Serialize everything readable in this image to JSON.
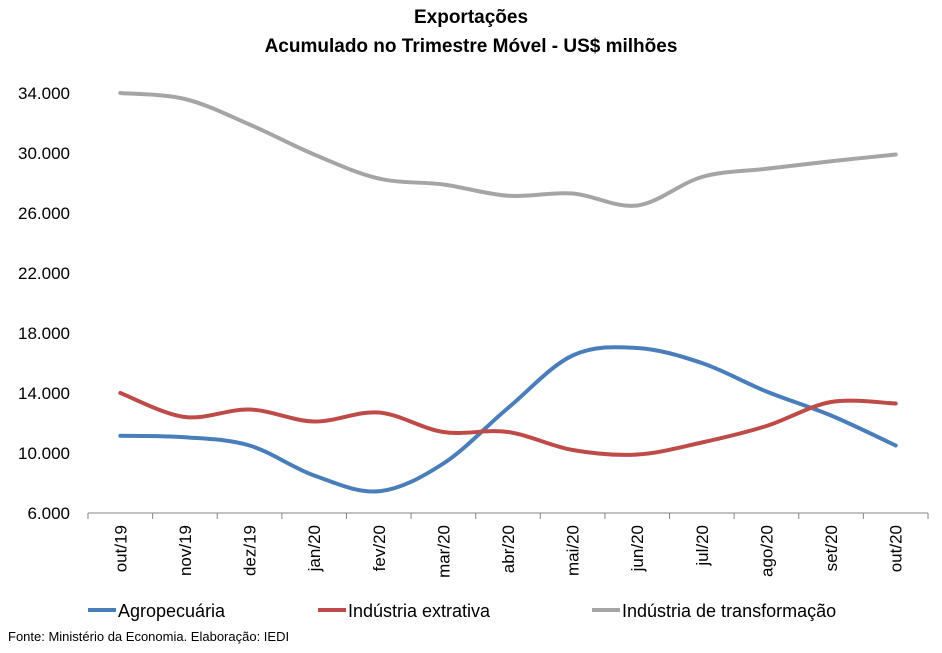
{
  "chart_data": {
    "type": "line",
    "title": "Exportações",
    "subtitle": "Acumulado no Trimestre Móvel - US$ milhões",
    "xlabel": "",
    "ylabel": "",
    "ylim": [
      6000,
      34000
    ],
    "yticks": [
      6000,
      10000,
      14000,
      18000,
      22000,
      26000,
      30000,
      34000
    ],
    "ytick_labels": [
      "6.000",
      "10.000",
      "14.000",
      "18.000",
      "22.000",
      "26.000",
      "30.000",
      "34.000"
    ],
    "categories": [
      "out/19",
      "nov/19",
      "dez/19",
      "jan/20",
      "fev/20",
      "mar/20",
      "abr/20",
      "mai/20",
      "jun/20",
      "jul/20",
      "ago/20",
      "set/20",
      "out/20"
    ],
    "grid": false,
    "legend_position": "bottom",
    "series": [
      {
        "name": "Agropecuária",
        "color": "#4a7ebb",
        "values": [
          11150,
          11050,
          10500,
          8500,
          7450,
          9300,
          13000,
          16500,
          17000,
          16000,
          14100,
          12500,
          10500
        ]
      },
      {
        "name": "Indústria extrativa",
        "color": "#be4b48",
        "values": [
          14000,
          12400,
          12900,
          12100,
          12700,
          11400,
          11400,
          10200,
          9900,
          10700,
          11800,
          13400,
          13300
        ]
      },
      {
        "name": "Indústria de transformação",
        "color": "#a5a5a5",
        "values": [
          34000,
          33600,
          31900,
          29900,
          28300,
          27900,
          27150,
          27300,
          26500,
          28400,
          28950,
          29450,
          29900
        ]
      }
    ]
  },
  "source": "Fonte: Ministério da Economia. Elaboração: IEDI"
}
